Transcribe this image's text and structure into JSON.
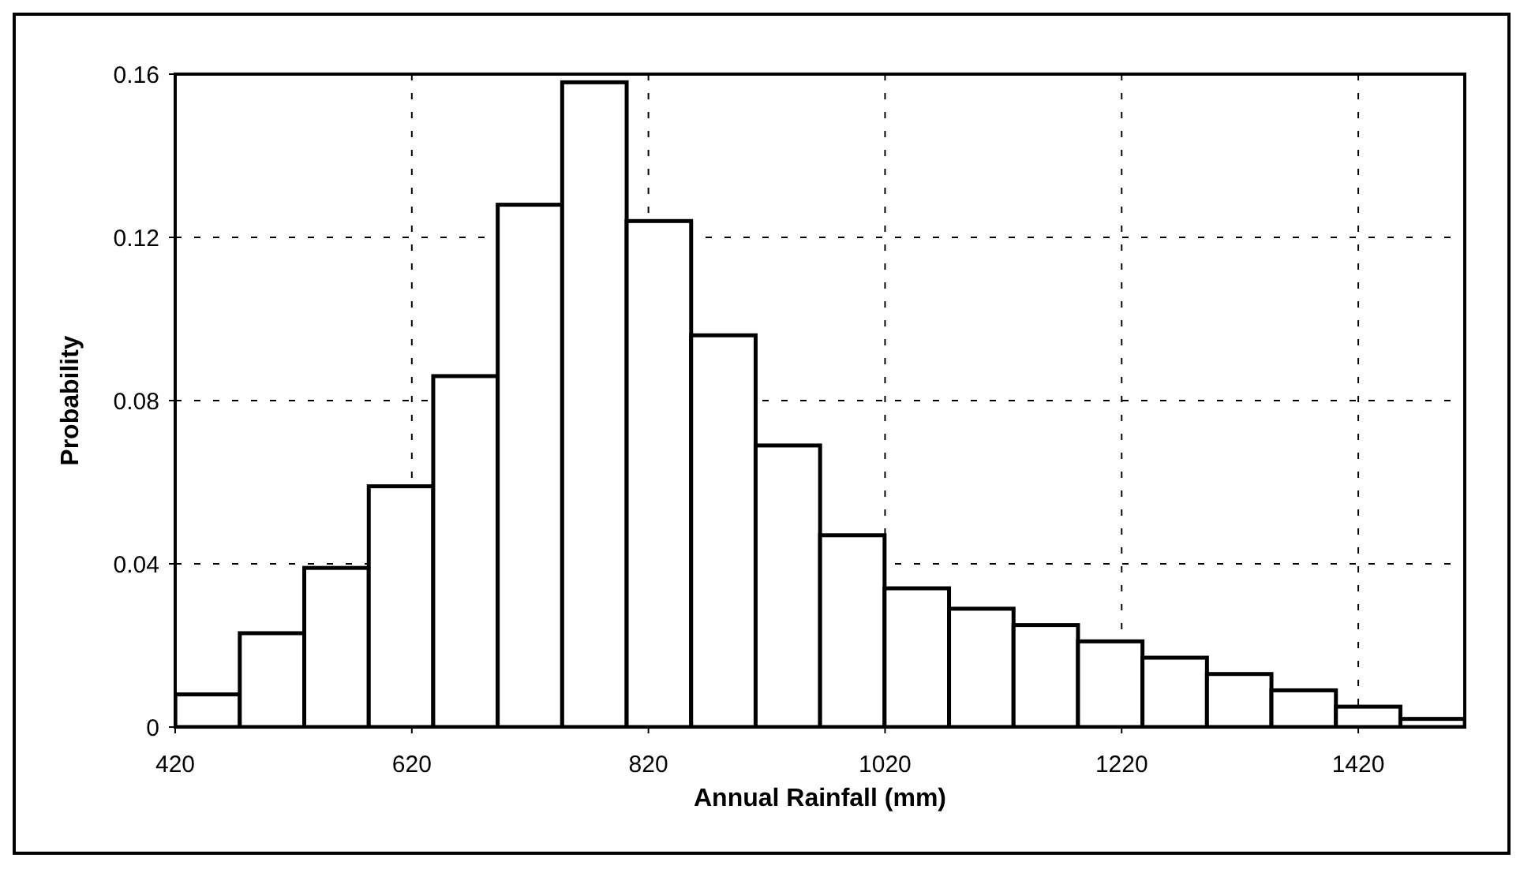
{
  "chart_data": {
    "type": "histogram",
    "xlabel": "Annual Rainfall (mm)",
    "ylabel": "Probability",
    "bins": [
      420,
      474.5,
      529,
      583.5,
      638,
      692.5,
      747,
      801.5,
      856,
      910.5,
      965,
      1019.5,
      1074,
      1128.5,
      1183,
      1237.5,
      1292,
      1346.5,
      1401,
      1455.5,
      1510
    ],
    "values": [
      0.008,
      0.023,
      0.039,
      0.059,
      0.086,
      0.128,
      0.158,
      0.124,
      0.096,
      0.069,
      0.047,
      0.034,
      0.029,
      0.025,
      0.021,
      0.017,
      0.013,
      0.009,
      0.005,
      0.002
    ],
    "color": "#ffffff",
    "xlim": [
      420,
      1510
    ],
    "xticks": [
      420,
      620,
      820,
      1020,
      1220,
      1420
    ],
    "ylim": [
      0,
      0.16
    ],
    "yticks": [
      0,
      0.04,
      0.08,
      0.12,
      0.16
    ],
    "grid": true
  }
}
